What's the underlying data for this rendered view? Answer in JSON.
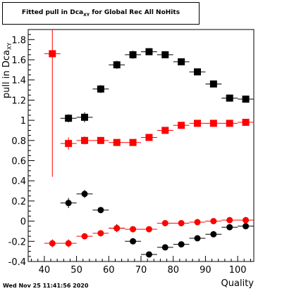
{
  "title": {
    "prefix": "Fitted pull in Dca",
    "subscript": "XY",
    "suffix": " for Global Rec All NoHits"
  },
  "timestamp": "Wed Nov 25 11:41:56 2020",
  "chart_data": {
    "type": "scatter",
    "xlabel": "Quality",
    "ylabel": {
      "main": "pull in Dca",
      "subscript": "XY"
    },
    "xlim": [
      35,
      105
    ],
    "ylim": [
      -0.4,
      1.9
    ],
    "x_ticks": [
      40,
      50,
      60,
      70,
      80,
      90,
      100
    ],
    "y_ticks": [
      -0.4,
      -0.2,
      0,
      0.2,
      0.4,
      0.6,
      0.8,
      1,
      1.2,
      1.4,
      1.6,
      1.8
    ],
    "y_tick_labels": [
      "-0.4",
      "-0.2",
      "0",
      "0.2",
      "0.4",
      "0.6",
      "0.8",
      "1",
      "1.2",
      "1.4",
      "1.6",
      "1.8"
    ],
    "x_half_width": 2.5,
    "grid": false,
    "series": [
      {
        "marker": "square",
        "color": "#000000",
        "points": [
          {
            "x": 47.5,
            "y": 1.02,
            "err": 0.04
          },
          {
            "x": 52.5,
            "y": 1.03,
            "err": 0.05
          },
          {
            "x": 57.5,
            "y": 1.31,
            "err": 0.04
          },
          {
            "x": 62.5,
            "y": 1.55,
            "err": 0.04
          },
          {
            "x": 67.5,
            "y": 1.65,
            "err": 0.04
          },
          {
            "x": 72.5,
            "y": 1.68,
            "err": 0.035
          },
          {
            "x": 77.5,
            "y": 1.65,
            "err": 0.03
          },
          {
            "x": 82.5,
            "y": 1.58,
            "err": 0.015
          },
          {
            "x": 87.5,
            "y": 1.48,
            "err": 0.015
          },
          {
            "x": 92.5,
            "y": 1.36,
            "err": 0.01
          },
          {
            "x": 97.5,
            "y": 1.22,
            "err": 0.01
          },
          {
            "x": 102.5,
            "y": 1.21,
            "err": 0.01
          }
        ]
      },
      {
        "marker": "square",
        "color": "#ff0000",
        "points": [
          {
            "x": 42.5,
            "y": 1.66,
            "err": 1.22
          },
          {
            "x": 47.5,
            "y": 0.77,
            "err": 0.06
          },
          {
            "x": 52.5,
            "y": 0.8,
            "err": 0.04
          },
          {
            "x": 57.5,
            "y": 0.8,
            "err": 0.03
          },
          {
            "x": 62.5,
            "y": 0.78,
            "err": 0.03
          },
          {
            "x": 67.5,
            "y": 0.78,
            "err": 0.03
          },
          {
            "x": 72.5,
            "y": 0.83,
            "err": 0.025
          },
          {
            "x": 77.5,
            "y": 0.9,
            "err": 0.015
          },
          {
            "x": 82.5,
            "y": 0.95,
            "err": 0.01
          },
          {
            "x": 87.5,
            "y": 0.97,
            "err": 0.01
          },
          {
            "x": 92.5,
            "y": 0.97,
            "err": 0.01
          },
          {
            "x": 97.5,
            "y": 0.97,
            "err": 0.01
          },
          {
            "x": 102.5,
            "y": 0.98,
            "err": 0.01
          }
        ]
      },
      {
        "marker": "circle",
        "color": "#000000",
        "points": [
          {
            "x": 47.5,
            "y": 0.18,
            "err": 0.05
          },
          {
            "x": 52.5,
            "y": 0.27,
            "err": 0.04
          },
          {
            "x": 57.5,
            "y": 0.11,
            "err": 0.03
          },
          {
            "x": 62.5,
            "y": -0.07,
            "err": 0.04
          },
          {
            "x": 67.5,
            "y": -0.2,
            "err": 0.02
          },
          {
            "x": 72.5,
            "y": -0.33,
            "err": 0.02
          },
          {
            "x": 77.5,
            "y": -0.26,
            "err": 0.01
          },
          {
            "x": 82.5,
            "y": -0.23,
            "err": 0.01
          },
          {
            "x": 87.5,
            "y": -0.17,
            "err": 0.01
          },
          {
            "x": 92.5,
            "y": -0.13,
            "err": 0.01
          },
          {
            "x": 97.5,
            "y": -0.06,
            "err": 0.01
          },
          {
            "x": 102.5,
            "y": -0.05,
            "err": 0.01
          }
        ]
      },
      {
        "marker": "circle",
        "color": "#ff0000",
        "points": [
          {
            "x": 42.5,
            "y": -0.22,
            "err": 0.04
          },
          {
            "x": 47.5,
            "y": -0.22,
            "err": 0.04
          },
          {
            "x": 52.5,
            "y": -0.15,
            "err": 0.025
          },
          {
            "x": 57.5,
            "y": -0.12,
            "err": 0.02
          },
          {
            "x": 62.5,
            "y": -0.07,
            "err": 0.02
          },
          {
            "x": 67.5,
            "y": -0.08,
            "err": 0.015
          },
          {
            "x": 72.5,
            "y": -0.08,
            "err": 0.015
          },
          {
            "x": 77.5,
            "y": -0.02,
            "err": 0.01
          },
          {
            "x": 82.5,
            "y": -0.02,
            "err": 0.01
          },
          {
            "x": 87.5,
            "y": -0.01,
            "err": 0.01
          },
          {
            "x": 92.5,
            "y": 0.0,
            "err": 0.01
          },
          {
            "x": 97.5,
            "y": 0.01,
            "err": 0.01
          },
          {
            "x": 102.5,
            "y": 0.01,
            "err": 0.01
          }
        ]
      }
    ]
  }
}
